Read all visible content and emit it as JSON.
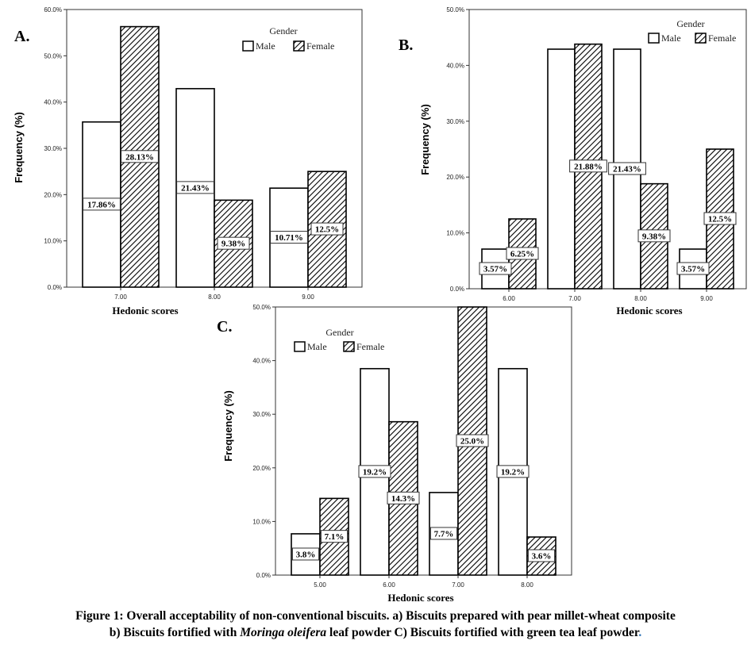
{
  "chart_data": [
    {
      "panel_label": "A.",
      "type": "bar",
      "xlabel": "Hedonic scores",
      "ylabel": "Frequency (%)",
      "ylim": [
        0,
        60
      ],
      "yticks": [
        "0.0%",
        "10.0%",
        "20.0%",
        "30.0%",
        "40.0%",
        "50.0%",
        "60.0%"
      ],
      "categories": [
        "7.00",
        "8.00",
        "9.00"
      ],
      "legend": {
        "title": "Gender",
        "placement": "top-right"
      },
      "series": [
        {
          "name": "Male",
          "pattern": "none",
          "values": [
            35.7,
            42.9,
            21.4
          ],
          "labels": [
            "17.86%",
            "21.43%",
            "10.71%"
          ]
        },
        {
          "name": "Female",
          "pattern": "hatch",
          "values": [
            56.3,
            18.8,
            25.0
          ],
          "labels": [
            "28.13%",
            "9.38%",
            "12.5%"
          ]
        }
      ]
    },
    {
      "panel_label": "B.",
      "type": "bar",
      "xlabel": "Hedonic scores",
      "ylabel": "Frequency (%)",
      "ylim": [
        0,
        50
      ],
      "yticks": [
        "0.0%",
        "10.0%",
        "20.0%",
        "30.0%",
        "40.0%",
        "50.0%"
      ],
      "categories": [
        "6.00",
        "7.00",
        "8.00",
        "9.00"
      ],
      "legend": {
        "title": "Gender",
        "placement": "top-right"
      },
      "series": [
        {
          "name": "Male",
          "pattern": "none",
          "values": [
            7.1,
            42.9,
            42.9,
            7.1
          ],
          "labels": [
            "3.57%",
            "",
            "21.43%",
            "3.57%"
          ]
        },
        {
          "name": "Female",
          "pattern": "hatch",
          "values": [
            12.5,
            43.8,
            18.8,
            25.0
          ],
          "labels": [
            "6.25%",
            "21.88%",
            "9.38%",
            "12.5%"
          ]
        }
      ]
    },
    {
      "panel_label": "C.",
      "type": "bar",
      "xlabel": "Hedonic scores",
      "ylabel": "Frequency (%)",
      "ylim": [
        0,
        50
      ],
      "yticks": [
        "0.0%",
        "10.0%",
        "20.0%",
        "30.0%",
        "40.0%",
        "50.0%"
      ],
      "categories": [
        "5.00",
        "6.00",
        "7.00",
        "8.00"
      ],
      "legend": {
        "title": "Gender",
        "placement": "top-left"
      },
      "series": [
        {
          "name": "Male",
          "pattern": "none",
          "values": [
            7.7,
            38.5,
            15.4,
            38.5
          ],
          "labels": [
            "3.8%",
            "19.2%",
            "7.7%",
            "19.2%"
          ]
        },
        {
          "name": "Female",
          "pattern": "hatch",
          "values": [
            14.3,
            28.6,
            50.0,
            7.1
          ],
          "labels": [
            "7.1%",
            "14.3%",
            "25.0%",
            "3.6%"
          ]
        }
      ]
    }
  ],
  "caption": {
    "line1": "Figure 1: Overall acceptability of non-conventional biscuits. a) Biscuits prepared with pear millet-wheat composite",
    "line2_part1": "b) Biscuits fortified with ",
    "line2_italic": "Moringa oleifera",
    "line2_part2": " leaf powder C) Biscuits fortified with green tea leaf powder",
    "line2_end": "."
  }
}
